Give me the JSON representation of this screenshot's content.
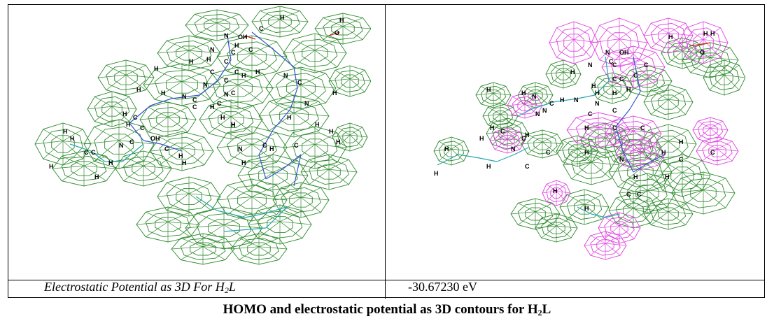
{
  "left_caption": {
    "text": "Electrostatic Potential as 3D For H",
    "sub": "2",
    "tail": "L"
  },
  "right_value": "-30.67230 eV",
  "figure_caption": {
    "text": "HOMO and electrostatic potential as 3D contours for H",
    "sub": "2",
    "tail": "L"
  },
  "colors": {
    "green_mesh": "#2e8b2e",
    "magenta_mesh": "#e040e0",
    "bond_blue": "#3355cc",
    "bond_cyan": "#2aa6b0",
    "oxygen_red": "#cc2222"
  },
  "left_panel": {
    "atoms": [
      "H",
      "N",
      "OH",
      "C",
      "H",
      "O",
      "H",
      "N",
      "C",
      "C",
      "H",
      "C",
      "H",
      "C",
      "H",
      "C",
      "N",
      "C",
      "N",
      "H",
      "C",
      "H",
      "N",
      "C",
      "H",
      "H",
      "N",
      "H",
      "C",
      "OH",
      "C",
      "C",
      "H",
      "H",
      "C",
      "H",
      "H",
      "N",
      "H",
      "H",
      "H",
      "N",
      "C",
      "C",
      "H",
      "H",
      "N",
      "H",
      "C",
      "H",
      "H",
      "C",
      "H",
      "C",
      "C",
      "H",
      "H",
      "C",
      "H",
      "H",
      "H",
      "H"
    ]
  },
  "right_panel": {
    "atoms": [
      "H",
      "N",
      "OH",
      "C",
      "H",
      "O",
      "H",
      "N",
      "C",
      "H",
      "C",
      "H",
      "C",
      "C",
      "N",
      "C",
      "N",
      "H",
      "H",
      "C",
      "N",
      "H",
      "N",
      "H",
      "C",
      "N",
      "H",
      "H",
      "C",
      "H",
      "C",
      "C",
      "H",
      "C",
      "C",
      "H",
      "H",
      "N",
      "H",
      "H",
      "C",
      "C",
      "H",
      "H",
      "N",
      "C",
      "H",
      "H",
      "C",
      "H",
      "H",
      "C",
      "C",
      "H",
      "H"
    ]
  }
}
